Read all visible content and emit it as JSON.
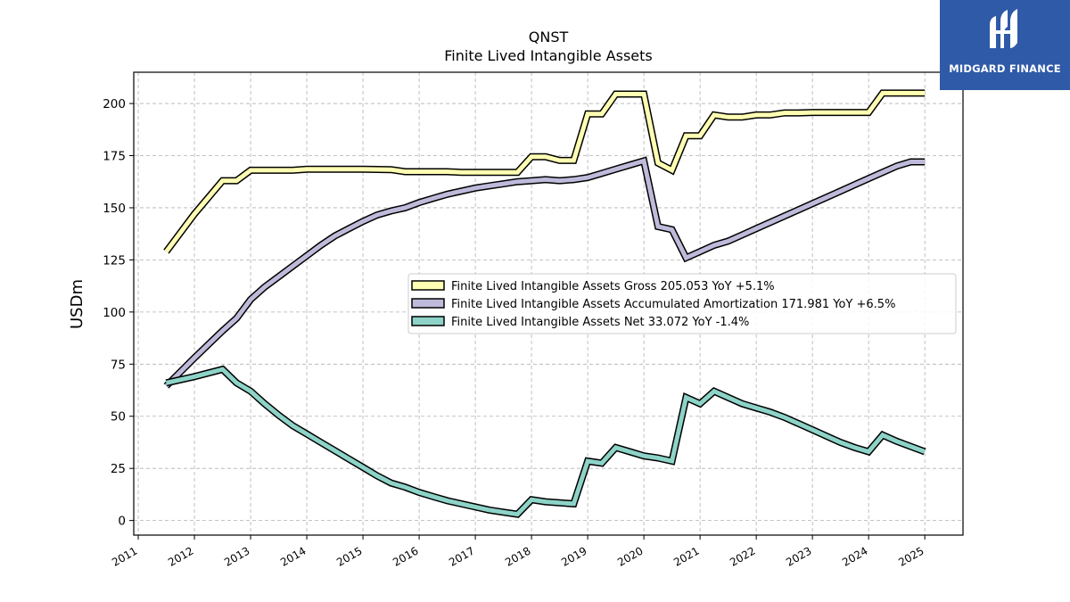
{
  "chart_data": {
    "type": "line",
    "title": "QNST",
    "subtitle": "Finite Lived Intangible Assets",
    "ylabel": "USDm",
    "xlabel": "",
    "xlim": [
      2010.92,
      2025.68
    ],
    "ylim": [
      -7,
      215
    ],
    "y_ticks": [
      0,
      25,
      50,
      75,
      100,
      125,
      150,
      175,
      200
    ],
    "x_ticks": [
      2011,
      2012,
      2013,
      2014,
      2015,
      2016,
      2017,
      2018,
      2019,
      2020,
      2021,
      2022,
      2023,
      2024,
      2025
    ],
    "grid": true,
    "legend_position": "center-right",
    "series": [
      {
        "name": "Finite Lived Intangible Assets Gross  205.053 YoY +5.1%",
        "color": "#ffffb3",
        "points": [
          [
            2011.5,
            129
          ],
          [
            2012.0,
            147
          ],
          [
            2012.5,
            163
          ],
          [
            2012.75,
            163
          ],
          [
            2013.0,
            168
          ],
          [
            2013.5,
            168
          ],
          [
            2013.75,
            168
          ],
          [
            2014.0,
            168.5
          ],
          [
            2014.5,
            168.5
          ],
          [
            2015.0,
            168.5
          ],
          [
            2015.5,
            168.3
          ],
          [
            2015.75,
            167.3
          ],
          [
            2016.0,
            167.3
          ],
          [
            2016.5,
            167.3
          ],
          [
            2016.75,
            167
          ],
          [
            2017.0,
            167
          ],
          [
            2017.5,
            167
          ],
          [
            2017.75,
            167
          ],
          [
            2018.0,
            174.5
          ],
          [
            2018.25,
            174.5
          ],
          [
            2018.5,
            172.7
          ],
          [
            2018.75,
            172.7
          ],
          [
            2019.0,
            195
          ],
          [
            2019.25,
            195
          ],
          [
            2019.5,
            204.5
          ],
          [
            2019.75,
            204.5
          ],
          [
            2020.0,
            204.5
          ],
          [
            2020.25,
            171.5
          ],
          [
            2020.5,
            168
          ],
          [
            2020.75,
            184.5
          ],
          [
            2021.0,
            184.5
          ],
          [
            2021.25,
            194.5
          ],
          [
            2021.5,
            193.5
          ],
          [
            2021.75,
            193.5
          ],
          [
            2022.0,
            194.5
          ],
          [
            2022.25,
            194.5
          ],
          [
            2022.5,
            195.5
          ],
          [
            2022.75,
            195.5
          ],
          [
            2023.0,
            195.7
          ],
          [
            2023.25,
            195.7
          ],
          [
            2023.5,
            195.7
          ],
          [
            2023.75,
            195.7
          ],
          [
            2024.0,
            195.7
          ],
          [
            2024.25,
            205
          ],
          [
            2024.5,
            205
          ],
          [
            2024.75,
            205
          ],
          [
            2025.0,
            205
          ]
        ]
      },
      {
        "name": "Finite Lived Intangible Assets Accumulated Amortization  171.981 YoY +6.5%",
        "color": "#bebada",
        "points": [
          [
            2011.5,
            64.5
          ],
          [
            2012.0,
            78
          ],
          [
            2012.5,
            91
          ],
          [
            2012.75,
            97
          ],
          [
            2013.0,
            106
          ],
          [
            2013.25,
            112
          ],
          [
            2013.5,
            117
          ],
          [
            2013.75,
            122
          ],
          [
            2014.0,
            127
          ],
          [
            2014.25,
            132
          ],
          [
            2014.5,
            136.5
          ],
          [
            2014.75,
            140
          ],
          [
            2015.0,
            143.5
          ],
          [
            2015.25,
            146.5
          ],
          [
            2015.5,
            148.5
          ],
          [
            2015.75,
            150
          ],
          [
            2016.0,
            152.5
          ],
          [
            2016.25,
            154.5
          ],
          [
            2016.5,
            156.5
          ],
          [
            2016.75,
            158
          ],
          [
            2017.0,
            159.5
          ],
          [
            2017.25,
            160.5
          ],
          [
            2017.5,
            161.5
          ],
          [
            2017.75,
            162.5
          ],
          [
            2018.0,
            163
          ],
          [
            2018.25,
            163.5
          ],
          [
            2018.5,
            163
          ],
          [
            2018.75,
            163.5
          ],
          [
            2019.0,
            164.5
          ],
          [
            2019.25,
            166.5
          ],
          [
            2019.5,
            168.5
          ],
          [
            2019.75,
            170.5
          ],
          [
            2020.0,
            172.5
          ],
          [
            2020.25,
            141
          ],
          [
            2020.5,
            139.5
          ],
          [
            2020.75,
            126
          ],
          [
            2021.0,
            129
          ],
          [
            2021.25,
            132
          ],
          [
            2021.5,
            134
          ],
          [
            2021.75,
            137
          ],
          [
            2022.0,
            140
          ],
          [
            2022.25,
            143
          ],
          [
            2022.5,
            146
          ],
          [
            2022.75,
            149
          ],
          [
            2023.0,
            152
          ],
          [
            2023.25,
            155
          ],
          [
            2023.5,
            158
          ],
          [
            2023.75,
            161
          ],
          [
            2024.0,
            164
          ],
          [
            2024.25,
            167
          ],
          [
            2024.5,
            170
          ],
          [
            2024.75,
            172
          ],
          [
            2025.0,
            172
          ]
        ]
      },
      {
        "name": "Finite Lived Intangible Assets Net  33.072 YoY -1.4%",
        "color": "#8dd3c7",
        "points": [
          [
            2011.5,
            66
          ],
          [
            2012.0,
            69
          ],
          [
            2012.5,
            72.5
          ],
          [
            2012.75,
            66
          ],
          [
            2013.0,
            62
          ],
          [
            2013.25,
            56
          ],
          [
            2013.5,
            50.5
          ],
          [
            2013.75,
            45.5
          ],
          [
            2014.0,
            41.5
          ],
          [
            2014.25,
            37.5
          ],
          [
            2014.5,
            33.5
          ],
          [
            2014.75,
            29.5
          ],
          [
            2015.0,
            25.5
          ],
          [
            2015.25,
            21.5
          ],
          [
            2015.5,
            18
          ],
          [
            2015.75,
            16
          ],
          [
            2016.0,
            13.5
          ],
          [
            2016.25,
            11.5
          ],
          [
            2016.5,
            9.5
          ],
          [
            2016.75,
            8
          ],
          [
            2017.0,
            6.5
          ],
          [
            2017.25,
            5
          ],
          [
            2017.5,
            4
          ],
          [
            2017.75,
            3
          ],
          [
            2018.0,
            10
          ],
          [
            2018.25,
            9
          ],
          [
            2018.5,
            8.5
          ],
          [
            2018.75,
            8
          ],
          [
            2019.0,
            28.5
          ],
          [
            2019.25,
            27.5
          ],
          [
            2019.5,
            35
          ],
          [
            2019.75,
            33
          ],
          [
            2020.0,
            31
          ],
          [
            2020.25,
            30
          ],
          [
            2020.5,
            28.5
          ],
          [
            2020.75,
            59
          ],
          [
            2021.0,
            56
          ],
          [
            2021.25,
            62
          ],
          [
            2021.5,
            59
          ],
          [
            2021.75,
            56
          ],
          [
            2022.0,
            54
          ],
          [
            2022.25,
            52
          ],
          [
            2022.5,
            49.5
          ],
          [
            2022.75,
            46.5
          ],
          [
            2023.0,
            43.5
          ],
          [
            2023.25,
            40.5
          ],
          [
            2023.5,
            37.5
          ],
          [
            2023.75,
            35
          ],
          [
            2024.0,
            33
          ],
          [
            2024.25,
            41
          ],
          [
            2024.5,
            38
          ],
          [
            2024.75,
            35.5
          ],
          [
            2025.0,
            33
          ]
        ]
      }
    ]
  },
  "logo": {
    "text": "MIDGARD FINANCE",
    "color": "#2f5aa8",
    "icon": "stylized-h-icon"
  }
}
